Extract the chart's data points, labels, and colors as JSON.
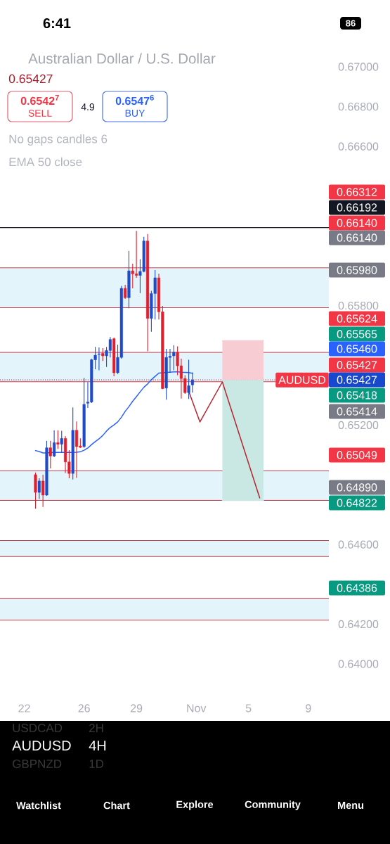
{
  "chart_data": {
    "type": "candlestick",
    "title": "Australian Dollar / U.S. Dollar",
    "categories": [
      null,
      null,
      null,
      null,
      null,
      null,
      "22",
      null,
      null,
      null,
      null,
      null,
      null,
      null,
      null,
      null,
      null,
      null,
      null,
      null,
      null,
      null,
      "26",
      null,
      null,
      null,
      null,
      null,
      null,
      null,
      null,
      null,
      null,
      null,
      null,
      null,
      "29",
      null,
      null,
      null,
      null,
      null,
      null,
      null,
      null,
      null,
      null,
      null,
      null,
      null,
      null,
      null,
      "Nov",
      null,
      null,
      null,
      null,
      null,
      null,
      null,
      null,
      null,
      null,
      null,
      null,
      null,
      "5",
      null,
      null,
      null,
      null,
      null,
      null,
      null,
      null,
      null,
      null,
      null,
      null,
      null,
      null,
      null,
      "9",
      null,
      null,
      null,
      null,
      null
    ],
    "ohlc": [
      null,
      null,
      null,
      null,
      null,
      null,
      null,
      null,
      null,
      [
        0.64951,
        0.64962,
        0.6478,
        0.64862
      ],
      [
        0.64862,
        0.64933,
        0.64829,
        0.64919
      ],
      [
        0.64919,
        0.64951,
        0.64789,
        0.64848
      ],
      [
        0.64848,
        0.65121,
        0.64845,
        0.65086
      ],
      [
        0.65086,
        0.65121,
        0.64982,
        0.65045
      ],
      [
        0.65045,
        0.65174,
        0.65039,
        0.65112
      ],
      [
        0.65112,
        0.65174,
        0.6508,
        0.65104
      ],
      [
        0.65104,
        0.65171,
        0.65063,
        0.65133
      ],
      [
        0.65133,
        0.65145,
        0.64959,
        0.65015
      ],
      [
        0.65015,
        0.65074,
        0.64933,
        0.64957
      ],
      [
        0.64957,
        0.65289,
        0.64927,
        0.65174
      ],
      [
        0.65174,
        0.65218,
        0.64935,
        0.65092
      ],
      [
        0.65095,
        0.65133,
        0.65086,
        0.65088
      ],
      [
        0.65092,
        0.65437,
        0.65086,
        0.65304
      ],
      [
        0.6531,
        0.65416,
        0.65286,
        0.65316
      ],
      [
        0.65316,
        0.65534,
        0.65311,
        0.65528
      ],
      [
        0.65528,
        0.65593,
        0.65481,
        0.65551
      ],
      [
        0.65555,
        0.6559,
        0.65475,
        0.65557
      ],
      [
        0.6556,
        0.65587,
        0.65522,
        0.65548
      ],
      [
        0.65548,
        0.65593,
        0.65492,
        0.65575
      ],
      [
        0.65575,
        0.65642,
        0.6554,
        0.6563
      ],
      [
        0.65634,
        0.6564,
        0.65445,
        0.65463
      ],
      [
        0.65463,
        0.65604,
        0.65457,
        0.6554
      ],
      [
        0.6554,
        0.65899,
        0.65534,
        0.65887
      ],
      [
        0.65887,
        0.65905,
        0.65834,
        0.6584
      ],
      [
        0.6584,
        0.66075,
        0.65787,
        0.65975
      ],
      [
        0.65975,
        0.66011,
        0.65887,
        0.6596
      ],
      [
        0.6596,
        0.66176,
        0.6594,
        0.65952
      ],
      [
        0.65952,
        0.66034,
        0.65863,
        0.65972
      ],
      [
        0.65972,
        0.66146,
        0.65967,
        0.66125
      ],
      [
        0.66125,
        0.6616,
        0.65571,
        0.65736
      ],
      [
        0.65736,
        0.65875,
        0.65669,
        0.65861
      ],
      [
        0.65861,
        0.65979,
        0.65731,
        0.6594
      ],
      [
        0.6594,
        0.6596,
        0.65731,
        0.65769
      ],
      [
        0.65769,
        0.65799,
        0.65381,
        0.65383
      ],
      [
        0.65386,
        0.65583,
        0.65328,
        0.6554
      ],
      [
        0.6554,
        0.65583,
        0.65463,
        0.65546
      ],
      [
        0.65548,
        0.65602,
        0.65475,
        0.65566
      ],
      [
        0.65566,
        0.65595,
        0.65451,
        0.65498
      ],
      [
        0.65498,
        0.65534,
        0.65333,
        0.65434
      ],
      [
        0.65434,
        0.65451,
        0.65357,
        0.65363
      ],
      [
        0.65363,
        0.65528,
        0.65331,
        0.65398
      ],
      [
        0.65402,
        0.65465,
        0.65363,
        0.65427
      ],
      null,
      null,
      null,
      null,
      null,
      null,
      null,
      null,
      null,
      null,
      null,
      null,
      null,
      null,
      null,
      null,
      null,
      null,
      null,
      null,
      null,
      null,
      null,
      null,
      null,
      null,
      null,
      null,
      null,
      null,
      null,
      null,
      null,
      null,
      null,
      null
    ],
    "colors": [
      null,
      null,
      null,
      null,
      null,
      null,
      null,
      null,
      null,
      "#e01f2e",
      "#1f4bc8",
      "#e01f2e",
      "#1f4bc8",
      "#e01f2e",
      "#1f4bc8",
      "#e01f2e",
      "#1f4bc8",
      "#e01f2e",
      "#e01f2e",
      "#1f4bc8",
      "#e01f2e",
      "#e01f2e",
      "#1f4bc8",
      "#1f4bc8",
      "#1f4bc8",
      "#1f4bc8",
      "#1f4bc8",
      "#e01f2e",
      "#1f4bc8",
      "#1f4bc8",
      "#e01f2e",
      "#1f4bc8",
      "#1f4bc8",
      "#e01f2e",
      "#1f4bc8",
      "#e01f2e",
      "#e01f2e",
      "#1f4bc8",
      "#1f4bc8",
      "#e01f2e",
      "#1f4bc8",
      "#1f4bc8",
      "#e01f2e",
      "#e01f2e",
      "#1f4bc8",
      "#1f4bc8",
      "#1f4bc8",
      "#e01f2e",
      "#e01f2e",
      "#e01f2e",
      "#1f4bc8",
      "#1f4bc8",
      null,
      null,
      null,
      null,
      null,
      null,
      null,
      null,
      null,
      null,
      null,
      null,
      null,
      null,
      null,
      null,
      null,
      null,
      null,
      null,
      null,
      null,
      null,
      null,
      null,
      null,
      null,
      null,
      null,
      null,
      null,
      null,
      null,
      null,
      null,
      null
    ],
    "series": [
      {
        "type": "line",
        "color": "#f7ccd2",
        "values": [
          null,
          null,
          null,
          null,
          null,
          null,
          null,
          null,
          null,
          null,
          null,
          null,
          null,
          null,
          null,
          null,
          null,
          null,
          null,
          null,
          null,
          null,
          null,
          null,
          null,
          null,
          null,
          null,
          null,
          null,
          null,
          null,
          null,
          null,
          null,
          null,
          null,
          null,
          null,
          null,
          null,
          null,
          null,
          null,
          null,
          null,
          null,
          null,
          null,
          null,
          null,
          null,
          null,
          null,
          null,
          null,
          null,
          null,
          null,
          0.65624,
          0.65624,
          0.65624,
          0.65624,
          0.65624,
          0.65624,
          0.65624,
          0.65624,
          0.65624,
          0.65624,
          0.65624,
          0.65624,
          null,
          null,
          null,
          null,
          null,
          null,
          null,
          null,
          null,
          null,
          null,
          null,
          null,
          null,
          null,
          null,
          null
        ],
        "lower": [
          null,
          null,
          null,
          null,
          null,
          null,
          null,
          null,
          null,
          null,
          null,
          null,
          null,
          null,
          null,
          null,
          null,
          null,
          null,
          null,
          null,
          null,
          null,
          null,
          null,
          null,
          null,
          null,
          null,
          null,
          null,
          null,
          null,
          null,
          null,
          null,
          null,
          null,
          null,
          null,
          null,
          null,
          null,
          null,
          null,
          null,
          null,
          null,
          null,
          null,
          null,
          null,
          null,
          null,
          null,
          null,
          null,
          null,
          null,
          0.65427,
          0.65427,
          0.65427,
          0.65427,
          0.65427,
          0.65427,
          0.65427,
          0.65427,
          0.65427,
          0.65427,
          0.65427,
          0.65427,
          null,
          null,
          null,
          null,
          null,
          null,
          null,
          null,
          null,
          null,
          null,
          null,
          null,
          null,
          null,
          null,
          null
        ],
        "upper": [
          null,
          null,
          null,
          null,
          null,
          null,
          null,
          null,
          null,
          null,
          null,
          null,
          null,
          null,
          null,
          null,
          null,
          null,
          null,
          null,
          null,
          null,
          null,
          null,
          null,
          null,
          null,
          null,
          null,
          null,
          null,
          null,
          null,
          null,
          null,
          null,
          null,
          null,
          null,
          null,
          null,
          null,
          null,
          null,
          null,
          null,
          null,
          null,
          null,
          null,
          null,
          null,
          null,
          null,
          null,
          null,
          null,
          null,
          null,
          0.65624,
          0.65624,
          0.65624,
          0.65624,
          0.65624,
          0.65624,
          0.65624,
          0.65624,
          0.65624,
          0.65624,
          0.65624,
          0.65624,
          null,
          null,
          null,
          null,
          null,
          null,
          null,
          null,
          null,
          null,
          null,
          null,
          null,
          null,
          null,
          null,
          null
        ]
      },
      {
        "type": "line",
        "color": "#c9e7e3",
        "values": [
          null,
          null,
          null,
          null,
          null,
          null,
          null,
          null,
          null,
          null,
          null,
          null,
          null,
          null,
          null,
          null,
          null,
          null,
          null,
          null,
          null,
          null,
          null,
          null,
          null,
          null,
          null,
          null,
          null,
          null,
          null,
          null,
          null,
          null,
          null,
          null,
          null,
          null,
          null,
          null,
          null,
          null,
          null,
          null,
          null,
          null,
          null,
          null,
          null,
          null,
          null,
          null,
          null,
          null,
          null,
          null,
          null,
          null,
          null,
          0.64822,
          0.64822,
          0.64822,
          0.64822,
          0.64822,
          0.64822,
          0.64822,
          0.64822,
          0.64822,
          0.64822,
          0.64822,
          0.64822,
          null,
          null,
          null,
          null,
          null,
          null,
          null,
          null,
          null,
          null,
          null,
          null,
          null,
          null,
          null,
          null,
          null
        ],
        "lower": [
          null,
          null,
          null,
          null,
          null,
          null,
          null,
          null,
          null,
          null,
          null,
          null,
          null,
          null,
          null,
          null,
          null,
          null,
          null,
          null,
          null,
          null,
          null,
          null,
          null,
          null,
          null,
          null,
          null,
          null,
          null,
          null,
          null,
          null,
          null,
          null,
          null,
          null,
          null,
          null,
          null,
          null,
          null,
          null,
          null,
          null,
          null,
          null,
          null,
          null,
          null,
          null,
          null,
          null,
          null,
          null,
          null,
          null,
          null,
          0.64822,
          0.64822,
          0.64822,
          0.64822,
          0.64822,
          0.64822,
          0.64822,
          0.64822,
          0.64822,
          0.64822,
          0.64822,
          0.64822,
          null,
          null,
          null,
          null,
          null,
          null,
          null,
          null,
          null,
          null,
          null,
          null,
          null,
          null,
          null,
          null,
          null
        ],
        "upper": [
          null,
          null,
          null,
          null,
          null,
          null,
          null,
          null,
          null,
          null,
          null,
          null,
          null,
          null,
          null,
          null,
          null,
          null,
          null,
          null,
          null,
          null,
          null,
          null,
          null,
          null,
          null,
          null,
          null,
          null,
          null,
          null,
          null,
          null,
          null,
          null,
          null,
          null,
          null,
          null,
          null,
          null,
          null,
          null,
          null,
          null,
          null,
          null,
          null,
          null,
          null,
          null,
          null,
          null,
          null,
          null,
          null,
          null,
          null,
          0.65427,
          0.65427,
          0.65427,
          0.65427,
          0.65427,
          0.65427,
          0.65427,
          0.65427,
          0.65427,
          0.65427,
          0.65427,
          0.65427,
          null,
          null,
          null,
          null,
          null,
          null,
          null,
          null,
          null,
          null,
          null,
          null,
          null,
          null,
          null,
          null,
          null
        ]
      },
      {
        "type": "line",
        "color": "#2962ff",
        "values": [
          null,
          null,
          null,
          null,
          null,
          null,
          null,
          null,
          null,
          0.65072,
          0.65067,
          0.6506,
          0.6506,
          0.65062,
          0.65063,
          0.65063,
          0.65063,
          0.65063,
          0.65063,
          0.65063,
          0.65064,
          0.65066,
          0.65074,
          0.65085,
          0.65102,
          0.65117,
          0.65131,
          0.65148,
          0.6517,
          0.65188,
          0.65201,
          0.65216,
          0.6524,
          0.65269,
          0.65293,
          0.6532,
          0.65343,
          0.65367,
          0.6539,
          0.65407,
          0.65428,
          0.65445,
          0.65461,
          0.65463,
          0.65465,
          0.65466,
          0.65467,
          0.65468,
          0.65466,
          0.65465,
          0.65464,
          0.6546,
          null,
          null,
          null,
          null,
          null,
          null,
          null,
          null,
          null,
          null,
          null,
          null,
          null,
          null,
          null,
          null,
          null,
          null,
          null,
          null,
          null,
          null,
          null,
          null,
          null,
          null,
          null,
          null,
          null,
          null,
          null,
          null,
          null,
          null,
          null,
          null
        ]
      },
      {
        "type": "line",
        "color": "#b8242f",
        "values": [
          null,
          null,
          null,
          null,
          null,
          null,
          null,
          null,
          null,
          null,
          null,
          null,
          null,
          null,
          null,
          null,
          null,
          null,
          null,
          null,
          null,
          null,
          null,
          null,
          null,
          null,
          null,
          null,
          null,
          null,
          null,
          null,
          null,
          null,
          null,
          null,
          null,
          null,
          null,
          null,
          null,
          null,
          null,
          null,
          null,
          null,
          null,
          null,
          null,
          null,
          0.6537,
          null,
          null,
          0.65216,
          null,
          null,
          null,
          null,
          null,
          0.65417,
          null,
          null,
          null,
          null,
          null,
          null,
          null,
          null,
          null,
          0.64834,
          null,
          null,
          null,
          null,
          null,
          null,
          null,
          null,
          null,
          null,
          null,
          null,
          null,
          null,
          null,
          null,
          null,
          null
        ]
      }
    ],
    "bands": [
      {
        "axis": "y",
        "from": 0.6579,
        "to": 0.6599,
        "color": "#e3f4fa"
      },
      {
        "axis": "y",
        "from": 0.65418,
        "to": 0.65565,
        "color": "#e3f4fa"
      },
      {
        "axis": "y",
        "from": 0.64822,
        "to": 0.6497,
        "color": "#e3f4fa"
      },
      {
        "axis": "y",
        "from": 0.6454,
        "to": 0.6462,
        "color": "#e3f4fa"
      },
      {
        "axis": "y",
        "from": 0.6422,
        "to": 0.6433,
        "color": "#e3f4fa"
      }
    ],
    "ref_lines": [
      {
        "axis": "y",
        "value": 0.6599,
        "color": "#c2404e"
      },
      {
        "axis": "y",
        "value": 0.6579,
        "color": "#c2404e"
      },
      {
        "axis": "y",
        "value": 0.65565,
        "color": "#c2404e"
      },
      {
        "axis": "y",
        "value": 0.65418,
        "color": "#c2404e"
      },
      {
        "axis": "y",
        "value": 0.6497,
        "color": "#c2404e"
      },
      {
        "axis": "y",
        "value": 0.64822,
        "color": "#c2404e"
      },
      {
        "axis": "y",
        "value": 0.6462,
        "color": "#c2404e"
      },
      {
        "axis": "y",
        "value": 0.6454,
        "color": "#c2404e"
      },
      {
        "axis": "y",
        "value": 0.6433,
        "color": "#c2404e"
      },
      {
        "axis": "y",
        "value": 0.6422,
        "color": "#c2404e"
      },
      {
        "axis": "y",
        "value": 0.66192,
        "color": "#131722",
        "line_style": "solid"
      },
      {
        "axis": "y",
        "value": 0.65427,
        "label": "AUDUSD",
        "color": "#f23645",
        "line_style": "dotted"
      }
    ],
    "ylim": [
      0.64,
      0.67
    ],
    "yticks": [
      {
        "value": 0.67,
        "label": "0.67000"
      },
      {
        "value": 0.668,
        "label": "0.66800"
      },
      {
        "value": 0.666,
        "label": "0.66600"
      },
      {
        "value": 0.658,
        "label": "0.65800"
      },
      {
        "value": 0.652,
        "label": "0.65200"
      },
      {
        "value": 0.646,
        "label": "0.64600"
      },
      {
        "value": 0.642,
        "label": "0.64200"
      },
      {
        "value": 0.64,
        "label": "0.64000"
      }
    ],
    "annotations": [
      "6:41",
      "86",
      "0.65427",
      "0.6542$^{7}$",
      "SELL",
      "4.9",
      "0.6547$^{6}$",
      "BUY",
      "No gaps candles 6",
      "EMA 50 close",
      "USDCAD",
      "2H",
      "AUDUSD",
      "4H",
      "GBPNZD",
      "1D",
      "Watchlist",
      "Chart",
      "Explore",
      "Community",
      "Menu",
      "0.66312",
      "0.66192",
      "0.66140",
      "0.66140",
      "0.65980",
      "0.65624",
      "0.65565",
      "0.65460",
      "0.65427",
      "0.65427",
      "0.65418",
      "0.65414",
      "0.65049",
      "0.64890",
      "0.64822",
      "0.64386"
    ]
  }
}
